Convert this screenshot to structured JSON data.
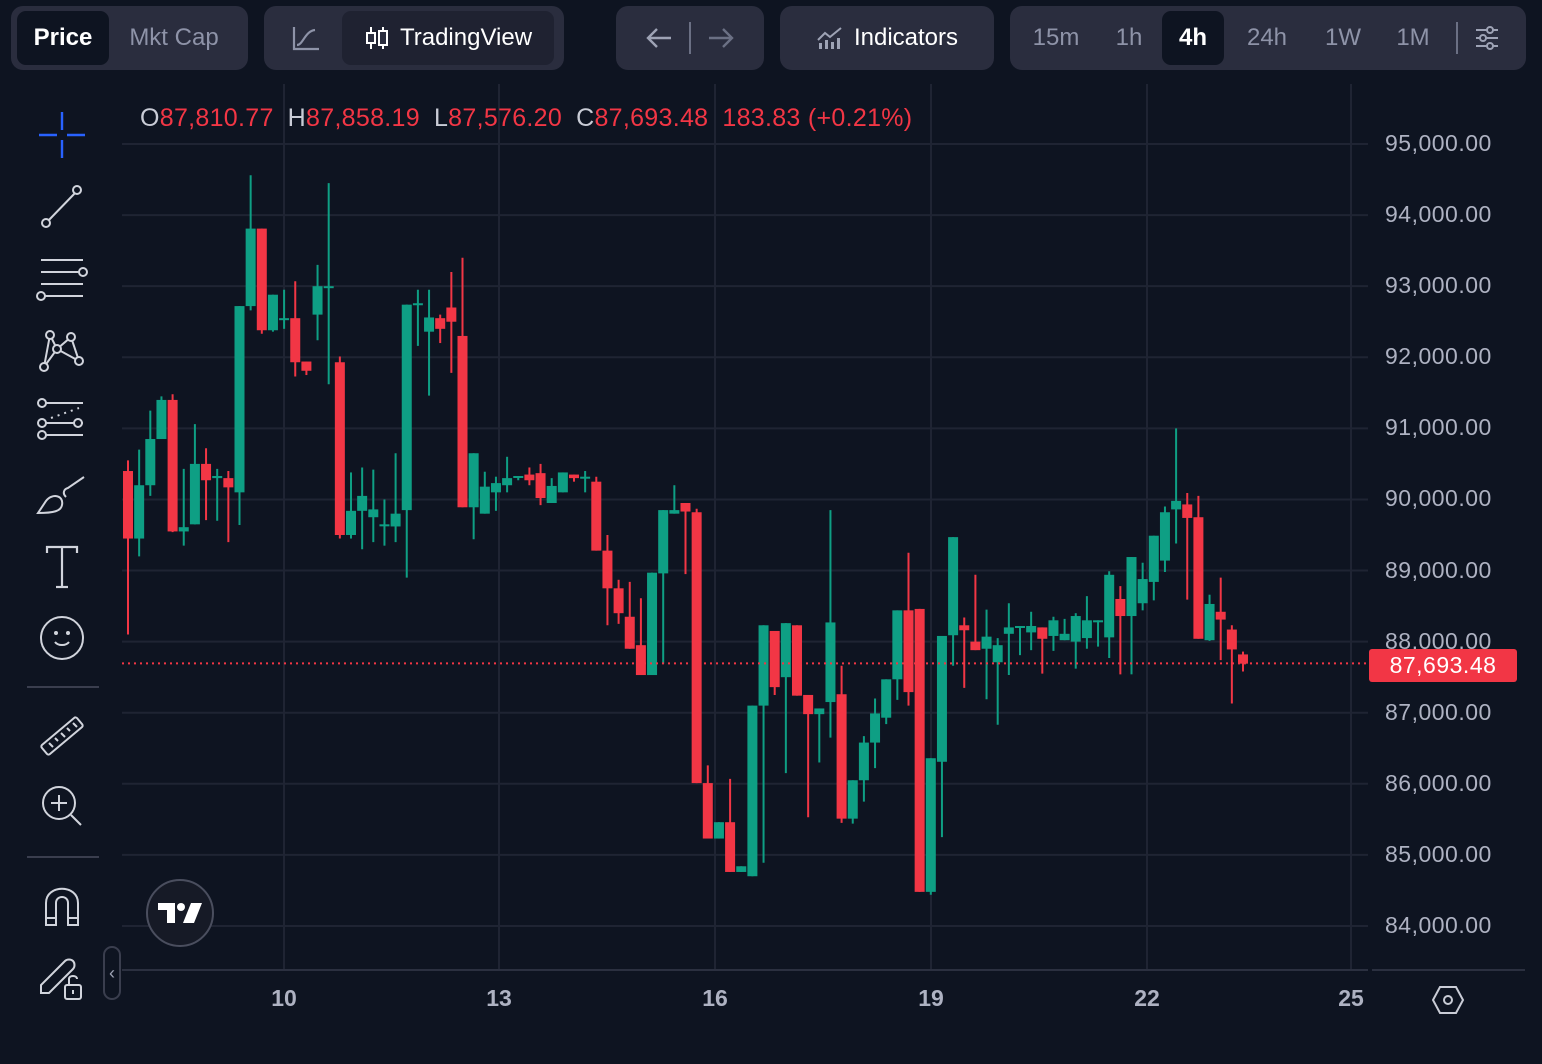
{
  "toolbar": {
    "price_tabs": [
      {
        "label": "Price",
        "active": true
      },
      {
        "label": "Mkt Cap",
        "active": false
      }
    ],
    "chart_type": {
      "line_icon": "line-chart-icon",
      "candles_label": "TradingView",
      "candles_icon": "candlestick-icon"
    },
    "nav": {
      "back_icon": "arrow-left-icon",
      "forward_icon": "arrow-right-icon"
    },
    "indicators_label": "Indicators",
    "timeframes": [
      {
        "label": "15m",
        "active": false
      },
      {
        "label": "1h",
        "active": false
      },
      {
        "label": "4h",
        "active": true
      },
      {
        "label": "24h",
        "active": false
      },
      {
        "label": "1W",
        "active": false
      },
      {
        "label": "1M",
        "active": false
      }
    ],
    "settings_icon": "sliders-icon"
  },
  "sidebar": {
    "tools": [
      "crosshair-icon",
      "trend-line-icon",
      "horizontal-lines-icon",
      "pattern-icon",
      "fib-retracement-icon",
      "brush-icon",
      "text-icon",
      "emoji-icon",
      "ruler-icon",
      "zoom-in-icon",
      "magnet-icon",
      "lock-drawing-icon"
    ]
  },
  "ohlc": {
    "o_label": "O",
    "o": "87,810.77",
    "h_label": "H",
    "h": "87,858.19",
    "l_label": "L",
    "l": "87,576.20",
    "c_label": "C",
    "c": "87,693.48",
    "change": "183.83 (+0.21%)"
  },
  "last_price": "87,693.48",
  "colors": {
    "up": "#0e9f84",
    "down": "#f23645",
    "background": "#0e1421",
    "grid": "#1f2433",
    "accent": "#2962ff"
  },
  "chart_data": {
    "type": "candlestick",
    "title": "",
    "xlabel": "",
    "ylabel": "",
    "interval": "4h",
    "ylim": [
      83500,
      95500
    ],
    "y_ticks": [
      "95,000.00",
      "94,000.00",
      "93,000.00",
      "92,000.00",
      "91,000.00",
      "90,000.00",
      "89,000.00",
      "88,000.00",
      "87,000.00",
      "86,000.00",
      "85,000.00",
      "84,000.00"
    ],
    "x_ticks": [
      "10",
      "13",
      "16",
      "19",
      "22",
      "25"
    ],
    "grid": true,
    "last_price": 87693.48,
    "candles": [
      [
        90400,
        90550,
        88100,
        89450
      ],
      [
        89450,
        90700,
        89200,
        90200
      ],
      [
        90200,
        91250,
        90050,
        90850
      ],
      [
        90850,
        91450,
        91000,
        91400
      ],
      [
        91400,
        91480,
        89540,
        89550
      ],
      [
        89550,
        90430,
        89350,
        89610
      ],
      [
        89650,
        91060,
        89650,
        90500
      ],
      [
        90500,
        90720,
        89710,
        90270
      ],
      [
        90300,
        90430,
        89700,
        90330
      ],
      [
        90300,
        90400,
        89400,
        90170
      ],
      [
        90100,
        92700,
        89640,
        92720
      ],
      [
        92720,
        94560,
        92660,
        93810
      ],
      [
        93810,
        93810,
        92330,
        92380
      ],
      [
        92380,
        92660,
        92360,
        92880
      ],
      [
        92550,
        92950,
        92400,
        92550
      ],
      [
        92550,
        93070,
        91730,
        91930
      ],
      [
        91940,
        91740,
        91750,
        91810
      ],
      [
        92600,
        93300,
        92240,
        93000
      ],
      [
        93000,
        94450,
        91620,
        93000
      ],
      [
        91930,
        92010,
        89450,
        89500
      ],
      [
        89500,
        90380,
        89450,
        89840
      ],
      [
        89840,
        90450,
        89300,
        90050
      ],
      [
        89750,
        90420,
        89400,
        89860
      ],
      [
        89650,
        90000,
        89350,
        89650
      ],
      [
        89620,
        90650,
        89400,
        89800
      ],
      [
        89850,
        91620,
        88900,
        92740
      ],
      [
        92740,
        92950,
        92160,
        92760
      ],
      [
        92360,
        92950,
        91460,
        92560
      ],
      [
        92550,
        92600,
        92200,
        92400
      ],
      [
        92700,
        93200,
        91780,
        92500
      ],
      [
        92300,
        93400,
        89890,
        89890
      ],
      [
        89890,
        89900,
        89440,
        90650
      ],
      [
        89800,
        90390,
        89800,
        90180
      ],
      [
        90100,
        90320,
        89840,
        90230
      ],
      [
        90200,
        90600,
        90100,
        90300
      ],
      [
        90310,
        90300,
        90270,
        90330
      ],
      [
        90350,
        90450,
        90200,
        90270
      ],
      [
        90370,
        90500,
        89920,
        90020
      ],
      [
        89950,
        90300,
        89950,
        90190
      ],
      [
        90100,
        90200,
        90250,
        90380
      ],
      [
        90350,
        90280,
        90250,
        90300
      ],
      [
        90300,
        90400,
        90100,
        90320
      ],
      [
        90250,
        90320,
        89300,
        89280
      ],
      [
        89280,
        89500,
        88230,
        88750
      ],
      [
        88750,
        88870,
        88250,
        88400
      ],
      [
        88350,
        88840,
        88160,
        87900
      ],
      [
        87950,
        88610,
        87660,
        87530
      ],
      [
        87530,
        88260,
        87690,
        88970
      ],
      [
        88960,
        89740,
        87690,
        89850
      ],
      [
        89800,
        90200,
        89910,
        89850
      ],
      [
        89950,
        89950,
        88950,
        89830
      ],
      [
        89820,
        89870,
        86060,
        86010
      ],
      [
        86010,
        86260,
        85320,
        85230
      ],
      [
        85230,
        85300,
        85280,
        85460
      ],
      [
        85460,
        86070,
        85320,
        84760
      ],
      [
        84760,
        84760,
        84880,
        84840
      ],
      [
        84700,
        85750,
        84960,
        87100
      ],
      [
        87100,
        88090,
        84890,
        88230
      ],
      [
        88150,
        88070,
        87250,
        87360
      ],
      [
        87500,
        87940,
        86150,
        88260
      ],
      [
        88230,
        88190,
        87300,
        87240
      ],
      [
        87250,
        87120,
        85530,
        86980
      ],
      [
        86980,
        86900,
        86300,
        87060
      ],
      [
        87150,
        89850,
        86650,
        88270
      ],
      [
        87260,
        87660,
        85450,
        85510
      ],
      [
        85510,
        85840,
        85440,
        86050
      ],
      [
        86050,
        86670,
        85750,
        86580
      ],
      [
        86580,
        87200,
        86220,
        86990
      ],
      [
        86930,
        87370,
        86840,
        87470
      ],
      [
        87470,
        88000,
        87180,
        88440
      ],
      [
        88440,
        89250,
        87100,
        87290
      ],
      [
        88460,
        88460,
        84650,
        84480
      ],
      [
        84480,
        85380,
        84440,
        86360
      ],
      [
        86310,
        87600,
        85250,
        88080
      ],
      [
        88090,
        88950,
        87660,
        89470
      ],
      [
        88230,
        88340,
        87350,
        88160
      ],
      [
        88000,
        88940,
        88160,
        87880
      ],
      [
        87900,
        88450,
        87190,
        88070
      ],
      [
        87710,
        88050,
        86830,
        87950
      ],
      [
        88110,
        88540,
        87530,
        88200
      ],
      [
        88200,
        88220,
        87810,
        88220
      ],
      [
        88130,
        88420,
        87880,
        88220
      ],
      [
        88200,
        88200,
        87550,
        88040
      ],
      [
        88080,
        88350,
        87870,
        88300
      ],
      [
        88020,
        88320,
        88140,
        88110
      ],
      [
        88000,
        88400,
        87620,
        88360
      ],
      [
        88050,
        88640,
        87900,
        88300
      ],
      [
        88300,
        88200,
        87930,
        88300
      ],
      [
        88060,
        88990,
        87770,
        88940
      ],
      [
        88600,
        88780,
        87540,
        88360
      ],
      [
        88360,
        88370,
        87540,
        89190
      ],
      [
        88540,
        89110,
        88440,
        88880
      ],
      [
        88840,
        89340,
        88580,
        89490
      ],
      [
        89140,
        89900,
        88980,
        89820
      ],
      [
        89860,
        91000,
        89380,
        89980
      ],
      [
        89930,
        90090,
        88590,
        89740
      ],
      [
        89750,
        90050,
        88540,
        88040
      ],
      [
        88020,
        88660,
        88010,
        88530
      ],
      [
        88420,
        88900,
        87740,
        88310
      ],
      [
        88170,
        88230,
        87130,
        87890
      ],
      [
        87820,
        87860,
        87580,
        87690
      ]
    ]
  }
}
